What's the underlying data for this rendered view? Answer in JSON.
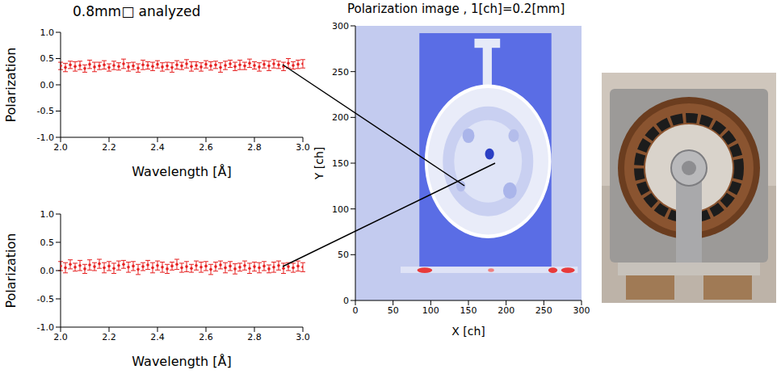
{
  "chart_data": [
    {
      "type": "scatter",
      "title": "0.8mm□ analyzed",
      "x_label": "Wavelength [Å]",
      "y_label": "Polarization",
      "color": "#e62020",
      "marker": "circle",
      "grid": false,
      "x": [
        2.0,
        2.02,
        2.04,
        2.06,
        2.08,
        2.1,
        2.12,
        2.14,
        2.16,
        2.18,
        2.2,
        2.22,
        2.24,
        2.26,
        2.28,
        2.3,
        2.32,
        2.34,
        2.36,
        2.38,
        2.4,
        2.42,
        2.44,
        2.46,
        2.48,
        2.5,
        2.52,
        2.54,
        2.56,
        2.58,
        2.6,
        2.62,
        2.64,
        2.66,
        2.68,
        2.7,
        2.72,
        2.74,
        2.76,
        2.78,
        2.8,
        2.82,
        2.84,
        2.86,
        2.88,
        2.9,
        2.92,
        2.94,
        2.96,
        2.98,
        3.0
      ],
      "values": [
        0.36,
        0.33,
        0.38,
        0.35,
        0.37,
        0.31,
        0.39,
        0.34,
        0.36,
        0.38,
        0.33,
        0.37,
        0.35,
        0.4,
        0.34,
        0.36,
        0.32,
        0.38,
        0.37,
        0.35,
        0.39,
        0.34,
        0.36,
        0.33,
        0.38,
        0.36,
        0.4,
        0.35,
        0.37,
        0.34,
        0.39,
        0.36,
        0.38,
        0.33,
        0.37,
        0.4,
        0.35,
        0.38,
        0.36,
        0.41,
        0.37,
        0.34,
        0.39,
        0.36,
        0.4,
        0.38,
        0.35,
        0.41,
        0.37,
        0.39,
        0.4
      ],
      "errors": [
        0.07,
        0.08,
        0.07,
        0.09,
        0.08,
        0.07,
        0.08,
        0.09,
        0.07,
        0.08,
        0.07,
        0.08,
        0.07,
        0.09,
        0.08,
        0.07,
        0.08,
        0.09,
        0.07,
        0.08,
        0.07,
        0.08,
        0.07,
        0.09,
        0.08,
        0.07,
        0.08,
        0.09,
        0.07,
        0.08,
        0.07,
        0.08,
        0.07,
        0.09,
        0.08,
        0.07,
        0.08,
        0.09,
        0.07,
        0.08,
        0.07,
        0.08,
        0.07,
        0.09,
        0.08,
        0.07,
        0.08,
        0.09,
        0.07,
        0.08,
        0.08
      ],
      "xlim": [
        2.0,
        3.0
      ],
      "xticks": [
        {
          "value": 2,
          "label": "2.0"
        },
        2.2,
        2.4,
        2.6,
        2.8,
        {
          "value": 3,
          "label": "3.0"
        }
      ],
      "ylim": [
        -1.0,
        1.0
      ],
      "yticks": [
        {
          "value": -1,
          "label": "-1.0"
        },
        -0.5,
        {
          "value": 0,
          "label": "0.0"
        },
        0.5,
        {
          "value": 1,
          "label": "1.0"
        }
      ]
    },
    {
      "type": "scatter",
      "x_label": "Wavelength [Å]",
      "y_label": "Polarization",
      "color": "#e62020",
      "marker": "circle",
      "grid": false,
      "x": [
        2.0,
        2.02,
        2.04,
        2.06,
        2.08,
        2.1,
        2.12,
        2.14,
        2.16,
        2.18,
        2.2,
        2.22,
        2.24,
        2.26,
        2.28,
        2.3,
        2.32,
        2.34,
        2.36,
        2.38,
        2.4,
        2.42,
        2.44,
        2.46,
        2.48,
        2.5,
        2.52,
        2.54,
        2.56,
        2.58,
        2.6,
        2.62,
        2.64,
        2.66,
        2.68,
        2.7,
        2.72,
        2.74,
        2.76,
        2.78,
        2.8,
        2.82,
        2.84,
        2.86,
        2.88,
        2.9,
        2.92,
        2.94,
        2.96,
        2.98,
        3.0
      ],
      "values": [
        0.08,
        0.05,
        0.11,
        0.06,
        0.09,
        0.03,
        0.1,
        0.07,
        0.12,
        0.05,
        0.08,
        0.04,
        0.09,
        0.11,
        0.06,
        0.08,
        0.02,
        0.07,
        0.1,
        0.05,
        0.09,
        0.06,
        0.03,
        0.08,
        0.11,
        0.05,
        0.07,
        0.04,
        0.09,
        0.06,
        0.08,
        0.02,
        0.07,
        0.1,
        0.05,
        0.08,
        0.03,
        0.06,
        0.09,
        0.04,
        0.07,
        0.05,
        0.08,
        0.03,
        0.06,
        0.09,
        0.04,
        0.07,
        0.05,
        0.08,
        0.06
      ],
      "errors": [
        0.08,
        0.09,
        0.08,
        0.07,
        0.09,
        0.08,
        0.09,
        0.07,
        0.08,
        0.09,
        0.08,
        0.09,
        0.08,
        0.07,
        0.09,
        0.08,
        0.09,
        0.07,
        0.08,
        0.09,
        0.08,
        0.09,
        0.08,
        0.07,
        0.09,
        0.08,
        0.09,
        0.07,
        0.08,
        0.09,
        0.08,
        0.09,
        0.08,
        0.07,
        0.09,
        0.08,
        0.09,
        0.07,
        0.08,
        0.09,
        0.08,
        0.09,
        0.08,
        0.07,
        0.09,
        0.08,
        0.09,
        0.07,
        0.08,
        0.09,
        0.08
      ],
      "xlim": [
        2.0,
        3.0
      ],
      "xticks": [
        {
          "value": 2,
          "label": "2.0"
        },
        2.2,
        2.4,
        2.6,
        2.8,
        {
          "value": 3,
          "label": "3.0"
        }
      ],
      "ylim": [
        -1.0,
        1.0
      ],
      "yticks": [
        {
          "value": -1,
          "label": "-1.0"
        },
        -0.5,
        {
          "value": 0,
          "label": "0.0"
        },
        0.5,
        {
          "value": 1,
          "label": "1.0"
        }
      ]
    },
    {
      "type": "image",
      "title": "Polarization image , 1[ch]=0.2[mm]",
      "x_label": "X [ch]",
      "y_label": "Y [ch]",
      "xlim": [
        0,
        300
      ],
      "xticks": [
        0,
        50,
        100,
        150,
        200,
        250,
        300
      ],
      "ylim": [
        0,
        300
      ],
      "yticks": [
        0,
        50,
        100,
        150,
        200,
        250,
        300
      ]
    }
  ]
}
